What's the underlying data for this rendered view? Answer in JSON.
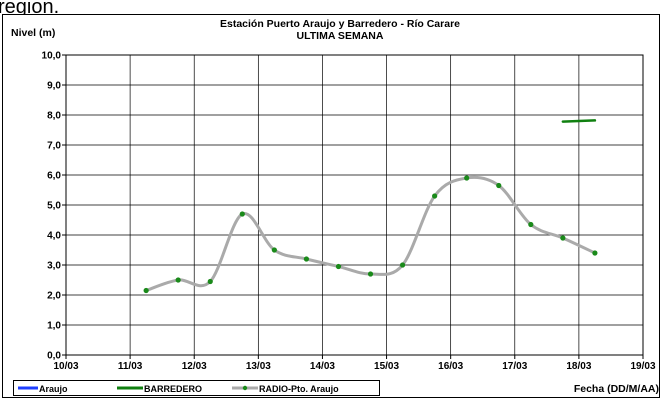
{
  "cropped_caption": "region.",
  "chart_data": {
    "type": "line",
    "title": "Estación Puerto Araujo y Barredero - Río Carare",
    "subtitle": "ULTIMA SEMANA",
    "ylabel": "Nivel (m)",
    "xlabel": "Fecha (DD/M/AA)",
    "ylim": [
      0,
      10
    ],
    "y_ticks": [
      "0,0",
      "1,0",
      "2,0",
      "3,0",
      "4,0",
      "5,0",
      "6,0",
      "7,0",
      "8,0",
      "9,0",
      "10,0"
    ],
    "x_ticks": [
      "10/03",
      "11/03",
      "12/03",
      "13/03",
      "14/03",
      "15/03",
      "16/03",
      "17/03",
      "18/03",
      "19/03"
    ],
    "grid": true,
    "legend_position": "bottom-left",
    "series": [
      {
        "name": "Araujo",
        "color": "#1f3fff",
        "x": [],
        "values": []
      },
      {
        "name": "BARREDERO",
        "color": "#108010",
        "x": [
          7.75,
          8.25
        ],
        "values": [
          7.78,
          7.82
        ]
      },
      {
        "name": "RADIO-Pto. Araujo",
        "color": "#aaaaaa",
        "marker_color": "#1a8a1a",
        "x": [
          1.25,
          1.75,
          2.25,
          2.75,
          3.25,
          3.75,
          4.25,
          4.75,
          5.25,
          5.75,
          6.25,
          6.75,
          7.25,
          7.75,
          8.25
        ],
        "values": [
          2.15,
          2.5,
          2.45,
          4.7,
          3.5,
          3.2,
          2.95,
          2.7,
          3.0,
          5.3,
          5.9,
          5.65,
          4.35,
          3.9,
          3.4
        ]
      }
    ]
  }
}
